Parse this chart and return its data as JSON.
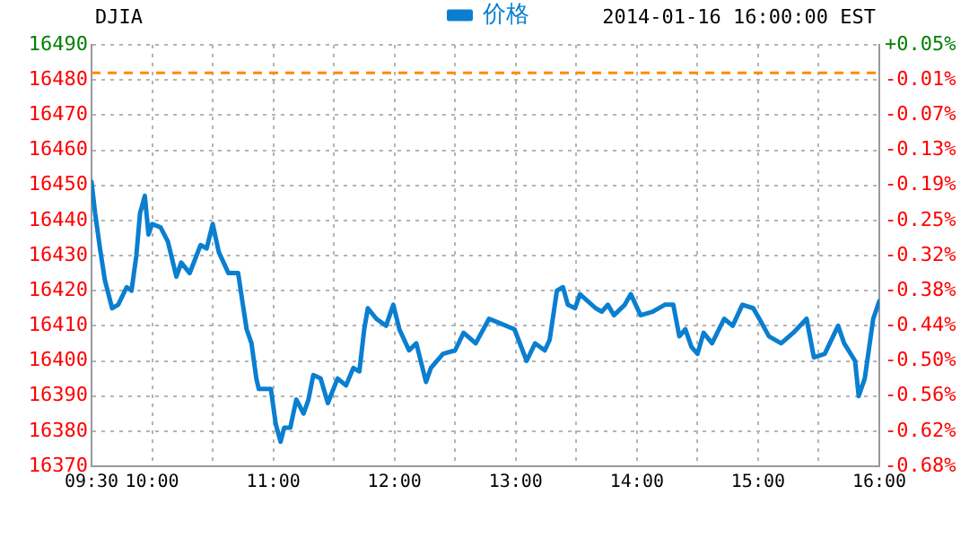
{
  "chart_data": {
    "type": "line",
    "title": "DJIA",
    "annotations": [
      "2014-01-16 16:00:00 EST"
    ],
    "x": [
      9.5,
      9.53,
      9.57,
      9.61,
      9.67,
      9.72,
      9.79,
      9.83,
      9.87,
      9.9,
      9.94,
      9.97,
      10.0,
      10.07,
      10.13,
      10.2,
      10.24,
      10.31,
      10.4,
      10.45,
      10.5,
      10.55,
      10.63,
      10.71,
      10.74,
      10.78,
      10.82,
      10.86,
      10.88,
      10.98,
      11.02,
      11.06,
      11.09,
      11.14,
      11.19,
      11.25,
      11.29,
      11.33,
      11.39,
      11.45,
      11.53,
      11.6,
      11.66,
      11.71,
      11.75,
      11.78,
      11.85,
      11.93,
      11.99,
      12.04,
      12.12,
      12.18,
      12.26,
      12.3,
      12.4,
      12.5,
      12.57,
      12.67,
      12.78,
      12.85,
      12.99,
      13.09,
      13.16,
      13.24,
      13.28,
      13.34,
      13.39,
      13.43,
      13.49,
      13.53,
      13.66,
      13.71,
      13.76,
      13.81,
      13.9,
      13.95,
      14.03,
      14.13,
      14.23,
      14.3,
      14.35,
      14.4,
      14.45,
      14.5,
      14.55,
      14.62,
      14.72,
      14.79,
      14.87,
      14.96,
      15.01,
      15.09,
      15.19,
      15.29,
      15.4,
      15.46,
      15.55,
      15.66,
      15.71,
      15.8,
      15.83,
      15.88,
      15.95,
      16.0
    ],
    "series": [
      {
        "name": "价格",
        "color": "#0a7fd0",
        "values": [
          16451,
          16442,
          16432,
          16423,
          16415,
          16416,
          16421,
          16420,
          16430,
          16442,
          16447,
          16436,
          16439,
          16438,
          16434,
          16424,
          16428,
          16425,
          16433,
          16432,
          16439,
          16431,
          16425,
          16425,
          16418,
          16409,
          16405,
          16395,
          16392,
          16392,
          16382,
          16377,
          16381,
          16381,
          16389,
          16385,
          16389,
          16396,
          16395,
          16388,
          16395,
          16393,
          16398,
          16397,
          16409,
          16415,
          16412,
          16410,
          16416,
          16409,
          16403,
          16405,
          16394,
          16398,
          16402,
          16403,
          16408,
          16405,
          16412,
          16411,
          16409,
          16400,
          16405,
          16403,
          16406,
          16420,
          16421,
          16416,
          16415,
          16419,
          16415,
          16414,
          16416,
          16413,
          16416,
          16419,
          16413,
          16414,
          16416,
          16416,
          16407,
          16409,
          16404,
          16402,
          16408,
          16405,
          16412,
          16410,
          16416,
          16415,
          16412,
          16407,
          16405,
          16408,
          16412,
          16401,
          16402,
          16410,
          16405,
          16400,
          16390,
          16395,
          16412,
          16417
        ]
      }
    ],
    "xlim": [
      9.5,
      16
    ],
    "xticks": [
      {
        "value": 9.5,
        "label": "09:30"
      },
      {
        "value": 10,
        "label": "10:00"
      },
      {
        "value": 10.5,
        "label": null
      },
      {
        "value": 11,
        "label": "11:00"
      },
      {
        "value": 11.5,
        "label": null
      },
      {
        "value": 12,
        "label": "12:00"
      },
      {
        "value": 12.5,
        "label": null
      },
      {
        "value": 13,
        "label": "13:00"
      },
      {
        "value": 13.5,
        "label": null
      },
      {
        "value": 14,
        "label": "14:00"
      },
      {
        "value": 14.5,
        "label": null
      },
      {
        "value": 15,
        "label": "15:00"
      },
      {
        "value": 15.5,
        "label": null
      },
      {
        "value": 16,
        "label": "16:00"
      }
    ],
    "ylim": [
      16370,
      16490
    ],
    "yticks": [
      16370,
      16380,
      16390,
      16400,
      16410,
      16420,
      16430,
      16440,
      16450,
      16460,
      16470,
      16480,
      16490
    ],
    "y2lim": [
      -0.6792,
      0.049
    ],
    "y2ticks": [
      {
        "value": -0.6792,
        "label": "-0.68%"
      },
      {
        "value": -0.6185,
        "label": "-0.62%"
      },
      {
        "value": -0.5579,
        "label": "-0.56%"
      },
      {
        "value": -0.4972,
        "label": "-0.50%"
      },
      {
        "value": -0.4365,
        "label": "-0.44%"
      },
      {
        "value": -0.3759,
        "label": "-0.38%"
      },
      {
        "value": -0.3152,
        "label": "-0.32%"
      },
      {
        "value": -0.2545,
        "label": "-0.25%"
      },
      {
        "value": -0.1938,
        "label": "-0.19%"
      },
      {
        "value": -0.1332,
        "label": "-0.13%"
      },
      {
        "value": -0.0725,
        "label": "-0.07%"
      },
      {
        "value": -0.0118,
        "label": "-0.01%"
      },
      {
        "value": 0.049,
        "label": "+0.05%"
      }
    ],
    "ref_lines": [
      {
        "axis": "y",
        "value": 16482,
        "color": "#ff8c00",
        "line_style": "dashed"
      }
    ],
    "grid": true,
    "legend": "top",
    "marker": "none",
    "line_style": "solid"
  }
}
